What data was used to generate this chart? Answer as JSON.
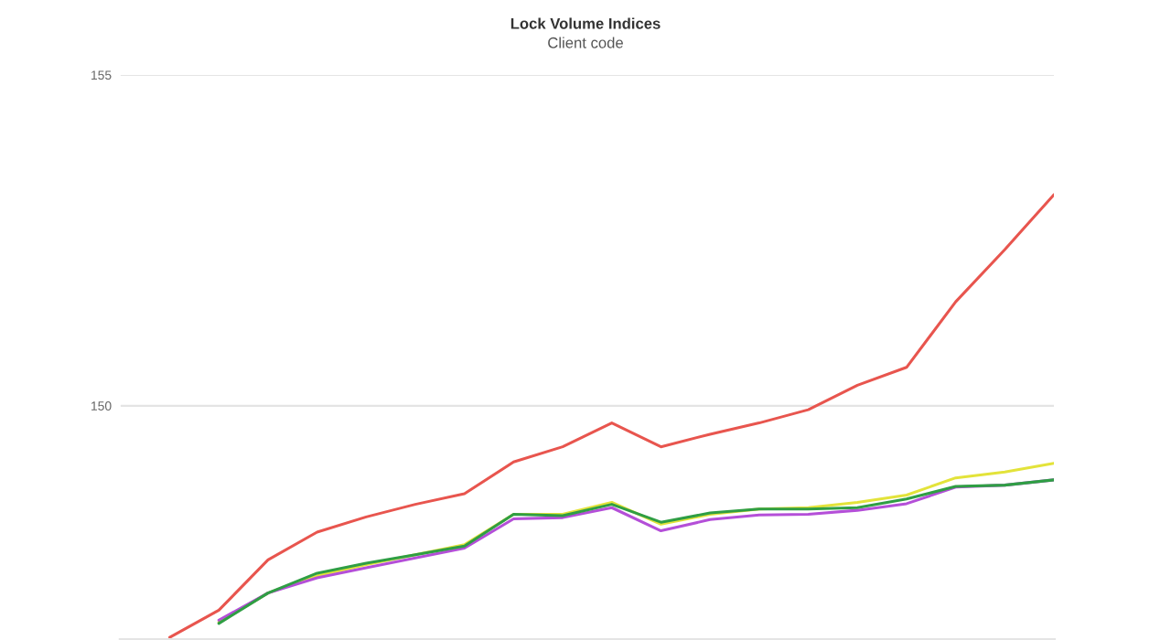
{
  "chart_data": {
    "type": "line",
    "title": "Lock Volume Indices",
    "subtitle": "Client code",
    "categories": [
      null,
      null,
      null,
      null,
      null,
      null,
      null,
      null,
      null,
      null,
      null,
      null,
      null,
      null,
      null,
      null,
      null,
      null,
      null,
      null
    ],
    "series": [
      {
        "color": "#e8554e",
        "values": [
          null,
          146.5,
          146.91,
          147.67,
          148.09,
          148.32,
          148.51,
          148.67,
          149.15,
          149.38,
          149.74,
          149.38,
          149.57,
          149.74,
          149.94,
          150.31,
          150.58,
          151.57,
          152.36,
          153.19
        ]
      },
      {
        "color": "#e3e33a",
        "values": [
          null,
          null,
          146.73,
          147.17,
          147.43,
          147.6,
          147.75,
          147.9,
          148.36,
          148.36,
          148.54,
          148.21,
          148.36,
          148.44,
          148.46,
          148.54,
          148.65,
          148.91,
          149.0,
          149.13
        ]
      },
      {
        "color": "#b44fd8",
        "values": [
          null,
          null,
          146.76,
          147.17,
          147.4,
          147.55,
          147.7,
          147.85,
          148.29,
          148.31,
          148.46,
          148.11,
          148.28,
          148.35,
          148.36,
          148.42,
          148.52,
          148.77,
          148.8,
          148.88
        ]
      },
      {
        "color": "#2f9e44",
        "values": [
          null,
          null,
          146.71,
          147.17,
          147.47,
          147.62,
          147.75,
          147.88,
          148.36,
          148.34,
          148.51,
          148.24,
          148.38,
          148.44,
          148.44,
          148.46,
          148.59,
          148.78,
          148.8,
          148.88
        ]
      }
    ],
    "ylim": [
      146.46,
      155
    ],
    "yticks": [
      150,
      155
    ],
    "grid": "y",
    "tick_labels": "y",
    "legend": false
  }
}
